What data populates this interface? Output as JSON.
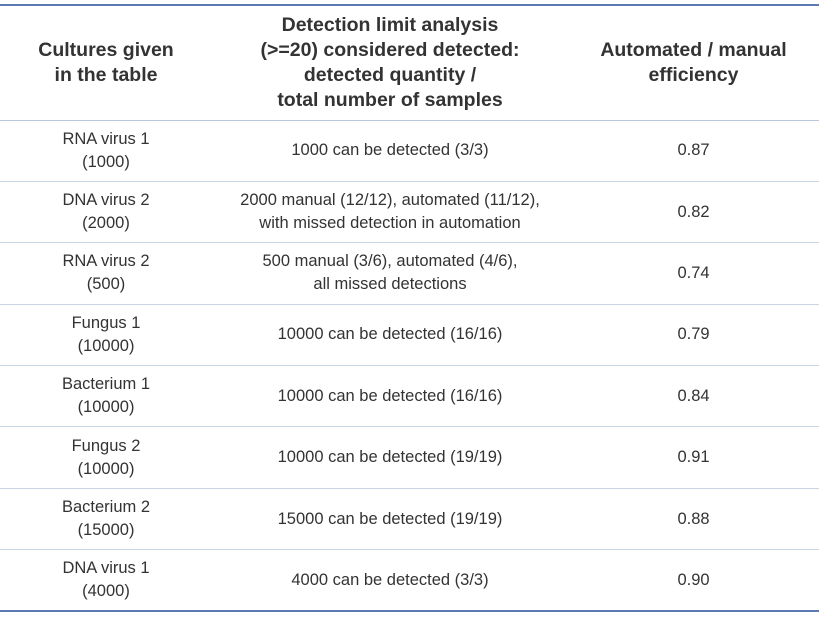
{
  "header": {
    "col1": [
      "Cultures given",
      "in the table"
    ],
    "col2": [
      "Detection limit analysis",
      "(>=20) considered detected:",
      "detected quantity /",
      "total number of samples"
    ],
    "col3": [
      "Automated / manual",
      "efficiency"
    ]
  },
  "rows": [
    {
      "culture": [
        "RNA virus 1",
        "(1000)"
      ],
      "detection": [
        "1000 can be detected (3/3)"
      ],
      "efficiency": "0.87"
    },
    {
      "culture": [
        "DNA virus 2",
        "(2000)"
      ],
      "detection": [
        "2000 manual (12/12), automated (11/12),",
        "with missed detection in automation"
      ],
      "efficiency": "0.82"
    },
    {
      "culture": [
        "RNA virus 2",
        "(500)"
      ],
      "detection": [
        "500 manual (3/6), automated (4/6),",
        "all missed detections"
      ],
      "efficiency": "0.74"
    },
    {
      "culture": [
        "Fungus 1",
        "(10000)"
      ],
      "detection": [
        "10000 can be detected (16/16)"
      ],
      "efficiency": "0.79"
    },
    {
      "culture": [
        "Bacterium 1",
        "(10000)"
      ],
      "detection": [
        "10000 can be detected (16/16)"
      ],
      "efficiency": "0.84"
    },
    {
      "culture": [
        "Fungus 2",
        "(10000)"
      ],
      "detection": [
        "10000 can be detected (19/19)"
      ],
      "efficiency": "0.91"
    },
    {
      "culture": [
        "Bacterium 2",
        "(15000)"
      ],
      "detection": [
        "15000 can be detected (19/19)"
      ],
      "efficiency": "0.88"
    },
    {
      "culture": [
        "DNA virus 1",
        "(4000)"
      ],
      "detection": [
        "4000 can be detected (3/3)"
      ],
      "efficiency": "0.90"
    }
  ],
  "colors": {
    "rule": "#5b7bb4",
    "text": "#333333"
  }
}
